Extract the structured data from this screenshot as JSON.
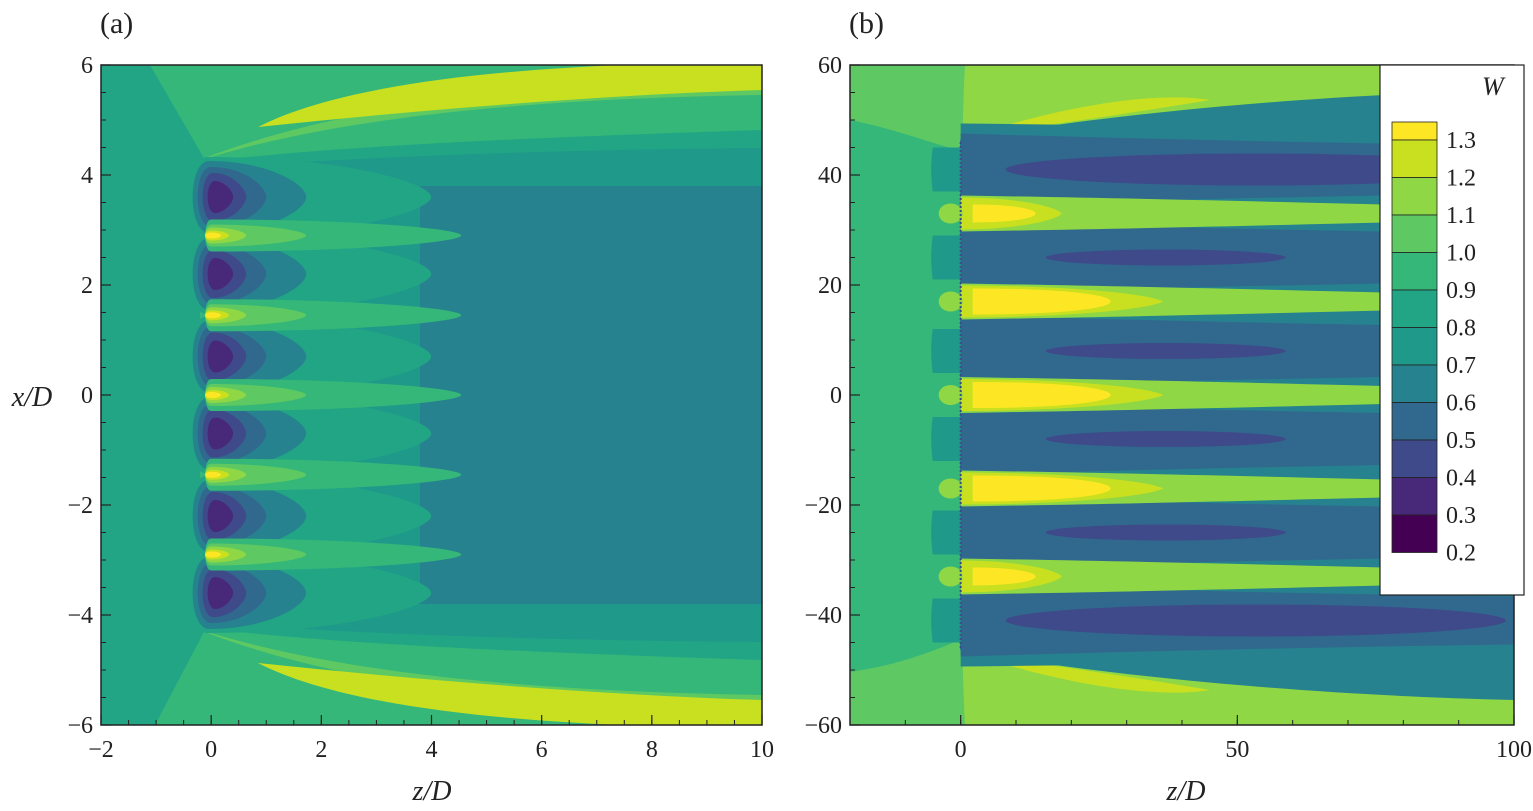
{
  "chart_data": [
    {
      "type": "heatmap",
      "panel_label": "(a)",
      "xlabel": "z/D",
      "ylabel": "x/D",
      "xlim": [
        -2,
        10
      ],
      "ylim": [
        -6,
        6
      ],
      "x_ticks": [
        "-2",
        "0",
        "2",
        "4",
        "6",
        "8",
        "10"
      ],
      "y_ticks": [
        "-6",
        "-4",
        "-2",
        "0",
        "2",
        "4",
        "6"
      ],
      "x_tick_values": [
        -2,
        0,
        2,
        4,
        6,
        8,
        10
      ],
      "y_tick_values": [
        -6,
        -4,
        -2,
        0,
        2,
        4,
        6
      ],
      "field": "W",
      "turbine_row_z": 0,
      "turbine_centres_x": [
        -3.6,
        -2.2,
        -0.7,
        0.7,
        2.2,
        3.6
      ],
      "jet_centres_x": [
        -2.9,
        -1.45,
        0,
        1.45,
        2.9
      ],
      "far_field_value": 0.75
    },
    {
      "type": "heatmap",
      "panel_label": "(b)",
      "xlabel": "z/D",
      "xlim": [
        -20,
        100
      ],
      "ylim": [
        -60,
        60
      ],
      "x_ticks": [
        "0",
        "50",
        "100"
      ],
      "y_ticks": [
        "-60",
        "-40",
        "-20",
        "0",
        "20",
        "40",
        "60"
      ],
      "x_tick_values": [
        0,
        50,
        100
      ],
      "y_tick_values": [
        -60,
        -40,
        -20,
        0,
        20,
        40,
        60
      ],
      "field": "W",
      "turbine_row_z": 0,
      "wake_centres_x": [
        -41,
        -25,
        -8,
        8,
        25,
        41
      ],
      "jet_centres_x": [
        -33,
        -17,
        0,
        17,
        33
      ],
      "far_field_value": 1.05
    }
  ],
  "colorbar": {
    "title": "W",
    "levels": [
      {
        "label": "1.3",
        "color": "#fde725"
      },
      {
        "label": "1.2",
        "color": "#c8e020"
      },
      {
        "label": "1.1",
        "color": "#8fd744"
      },
      {
        "label": "1.0",
        "color": "#5ec962"
      },
      {
        "label": "0.9",
        "color": "#35b779"
      },
      {
        "label": "0.8",
        "color": "#21a585"
      },
      {
        "label": "0.7",
        "color": "#1f9a8a"
      },
      {
        "label": "0.6",
        "color": "#26828e"
      },
      {
        "label": "0.5",
        "color": "#31688e"
      },
      {
        "label": "0.4",
        "color": "#3e4a89"
      },
      {
        "label": "0.3",
        "color": "#482878"
      },
      {
        "label": "0.2",
        "color": "#440154"
      }
    ]
  }
}
